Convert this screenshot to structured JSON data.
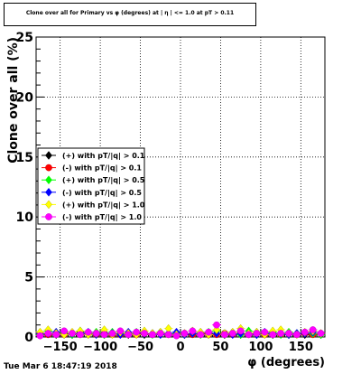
{
  "header": {
    "title": "Clone  over all for Primary vs φ (degrees) at | η | <= 1.0 at pT > 0.11"
  },
  "footer": {
    "timestamp": "Tue Mar  6 18:47:19 2018"
  },
  "chart_data": {
    "type": "scatter",
    "title": "Clone  over all for Primary vs φ (degrees) at | η | <= 1.0 at pT > 0.11",
    "xlabel": "φ (degrees)",
    "ylabel": "Clone  over all (%)",
    "xlim": [
      -180,
      180
    ],
    "ylim": [
      0,
      25
    ],
    "x_ticks": [
      -150,
      -100,
      -50,
      0,
      50,
      100,
      150
    ],
    "y_ticks": [
      0,
      5,
      10,
      15,
      20,
      25
    ],
    "grid": true,
    "legend_position": "left-middle",
    "x": [
      -175,
      -165,
      -155,
      -145,
      -135,
      -125,
      -115,
      -105,
      -95,
      -85,
      -75,
      -65,
      -55,
      -45,
      -35,
      -25,
      -15,
      -5,
      5,
      15,
      25,
      35,
      45,
      55,
      65,
      75,
      85,
      95,
      105,
      115,
      125,
      135,
      145,
      155,
      165,
      175
    ],
    "series": [
      {
        "name": "(+) with pT/|q| > 0.1",
        "color": "#000000",
        "values": [
          0.2,
          0.3,
          0.2,
          0.3,
          0.2,
          0.4,
          0.2,
          0.3,
          0.2,
          0.3,
          0.3,
          0.2,
          0.3,
          0.2,
          0.3,
          0.2,
          0.3,
          0.2,
          0.2,
          0.3,
          0.2,
          0.3,
          0.3,
          0.2,
          0.3,
          0.2,
          0.3,
          0.2,
          0.3,
          0.2,
          0.3,
          0.2,
          0.3,
          0.2,
          0.3,
          0.2
        ]
      },
      {
        "name": "(-) with pT/|q| > 0.1",
        "color": "#ff0000",
        "values": [
          0.3,
          0.2,
          0.3,
          0.2,
          0.3,
          0.2,
          0.3,
          0.2,
          0.3,
          0.2,
          0.2,
          0.3,
          0.2,
          0.3,
          0.2,
          0.3,
          0.2,
          0.3,
          0.3,
          0.2,
          0.3,
          0.2,
          0.2,
          0.3,
          0.2,
          0.3,
          0.2,
          0.3,
          0.2,
          0.3,
          0.2,
          0.3,
          0.2,
          0.3,
          0.2,
          0.3
        ]
      },
      {
        "name": "(+) with pT/|q| > 0.5",
        "color": "#00ff00",
        "values": [
          0.2,
          0.5,
          0.3,
          0.4,
          0.2,
          0.5,
          0.3,
          0.4,
          0.2,
          0.4,
          0.3,
          0.3,
          0.4,
          0.3,
          0.2,
          0.4,
          0.3,
          0.3,
          0.3,
          0.3,
          0.2,
          0.4,
          0.5,
          0.3,
          0.4,
          0.2,
          0.5,
          0.4,
          0.3,
          0.4,
          0.2,
          0.4,
          0.3,
          0.4,
          0.3,
          0.2
        ]
      },
      {
        "name": "(-) with pT/|q| > 0.5",
        "color": "#0000ff",
        "values": [
          0.3,
          0.3,
          0.4,
          0.2,
          0.3,
          0.3,
          0.4,
          0.2,
          0.3,
          0.3,
          0.2,
          0.4,
          0.3,
          0.3,
          0.3,
          0.2,
          0.3,
          0.4,
          0.2,
          0.3,
          0.4,
          0.2,
          0.3,
          0.3,
          0.2,
          0.3,
          0.3,
          0.2,
          0.4,
          0.3,
          0.3,
          0.2,
          0.3,
          0.3,
          0.4,
          0.3
        ]
      },
      {
        "name": "(+) with pT/|q| > 1.0",
        "color": "#ffff00",
        "values": [
          0.4,
          0.6,
          0.3,
          0.2,
          0.4,
          0.5,
          0.2,
          0.3,
          0.6,
          0.2,
          0.4,
          0.3,
          0.2,
          0.5,
          0.3,
          0.4,
          0.7,
          0.2,
          0.3,
          0.5,
          0.4,
          0.2,
          0.6,
          0.3,
          0.4,
          0.7,
          0.3,
          0.4,
          0.2,
          0.5,
          0.6,
          0.3,
          0.2,
          0.4,
          0.5,
          0.3
        ]
      },
      {
        "name": "(-) with pT/|q| > 1.0",
        "color": "#ff00ff",
        "values": [
          0.1,
          0.3,
          0.2,
          0.5,
          0.3,
          0.2,
          0.4,
          0.3,
          0.2,
          0.3,
          0.5,
          0.2,
          0.4,
          0.3,
          0.2,
          0.3,
          0.2,
          0.1,
          0.3,
          0.5,
          0.2,
          0.4,
          1.0,
          0.2,
          0.3,
          0.5,
          0.2,
          0.3,
          0.4,
          0.2,
          0.3,
          0.3,
          0.2,
          0.4,
          0.6,
          0.3
        ]
      }
    ]
  }
}
